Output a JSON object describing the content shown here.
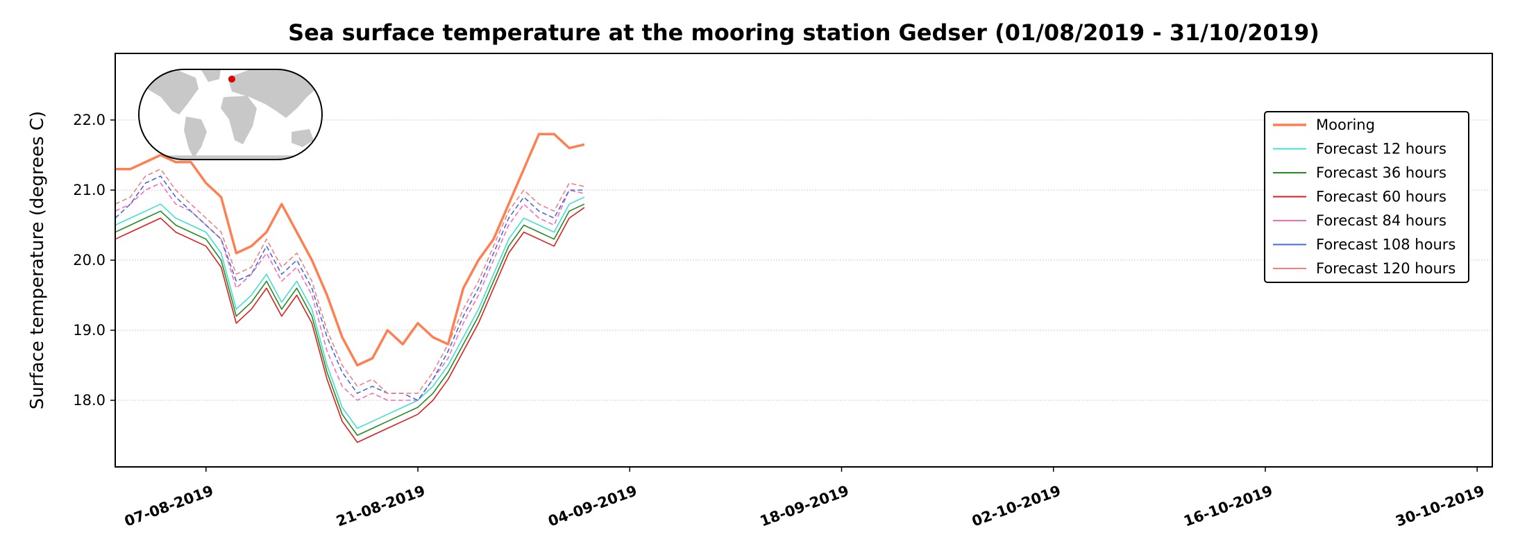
{
  "chart_data": {
    "type": "line",
    "title": "Sea surface temperature at the mooring station Gedser (01/08/2019 - 31/10/2019)",
    "ylabel": "Surface temperature (degrees C)",
    "xlabel": "",
    "x_range": [
      "2019-08-01",
      "2019-10-31"
    ],
    "ylim": [
      17.05,
      22.95
    ],
    "yticks": [
      18.0,
      19.0,
      20.0,
      21.0,
      22.0
    ],
    "ytick_labels": [
      "18.0",
      "19.0",
      "20.0",
      "21.0",
      "22.0"
    ],
    "xticks": [
      "2019-08-07",
      "2019-08-21",
      "2019-09-04",
      "2019-09-18",
      "2019-10-02",
      "2019-10-16",
      "2019-10-30"
    ],
    "xtick_labels": [
      "07-08-2019",
      "21-08-2019",
      "04-09-2019",
      "18-09-2019",
      "02-10-2019",
      "16-10-2019",
      "30-10-2019"
    ],
    "grid": "horizontal dotted",
    "legend_position": "upper right",
    "inset": "world map with station marker",
    "x": [
      "2019-08-01",
      "2019-08-02",
      "2019-08-03",
      "2019-08-04",
      "2019-08-05",
      "2019-08-06",
      "2019-08-07",
      "2019-08-08",
      "2019-08-09",
      "2019-08-10",
      "2019-08-11",
      "2019-08-12",
      "2019-08-13",
      "2019-08-14",
      "2019-08-15",
      "2019-08-16",
      "2019-08-17",
      "2019-08-18",
      "2019-08-19",
      "2019-08-20",
      "2019-08-21",
      "2019-08-22",
      "2019-08-23",
      "2019-08-24",
      "2019-08-25",
      "2019-08-26",
      "2019-08-27",
      "2019-08-28",
      "2019-08-29",
      "2019-08-30",
      "2019-08-31",
      "2019-09-01"
    ],
    "series": [
      {
        "name": "Mooring",
        "color": "#ff7f50",
        "width": 3.5,
        "dash": "",
        "values": [
          21.3,
          21.3,
          21.4,
          21.5,
          21.4,
          21.4,
          21.1,
          20.9,
          20.1,
          20.2,
          20.4,
          20.8,
          20.4,
          20.0,
          19.5,
          18.9,
          18.5,
          18.6,
          19.0,
          18.8,
          19.1,
          18.9,
          18.8,
          19.6,
          20.0,
          20.3,
          20.8,
          21.3,
          21.8,
          21.8,
          21.6,
          21.65
        ]
      },
      {
        "name": "Forecast 12 hours",
        "color": "#40e0d0",
        "width": 1.6,
        "dash": "",
        "values": [
          20.5,
          20.6,
          20.7,
          20.8,
          20.6,
          20.5,
          20.4,
          20.1,
          19.3,
          19.5,
          19.8,
          19.4,
          19.7,
          19.3,
          18.5,
          17.9,
          17.6,
          17.7,
          17.8,
          17.9,
          18.0,
          18.2,
          18.5,
          18.9,
          19.3,
          19.8,
          20.3,
          20.6,
          20.5,
          20.4,
          20.8,
          20.9
        ]
      },
      {
        "name": "Forecast 36 hours",
        "color": "#228b22",
        "width": 1.6,
        "dash": "",
        "values": [
          20.4,
          20.5,
          20.6,
          20.7,
          20.5,
          20.4,
          20.3,
          20.0,
          19.2,
          19.4,
          19.7,
          19.3,
          19.6,
          19.2,
          18.4,
          17.8,
          17.5,
          17.6,
          17.7,
          17.8,
          17.9,
          18.1,
          18.4,
          18.8,
          19.2,
          19.7,
          20.2,
          20.5,
          20.4,
          20.3,
          20.7,
          20.8
        ]
      },
      {
        "name": "Forecast 60 hours",
        "color": "#e31a1c",
        "width": 1.6,
        "dash": "",
        "values": [
          20.3,
          20.4,
          20.5,
          20.6,
          20.4,
          20.3,
          20.2,
          19.9,
          19.1,
          19.3,
          19.6,
          19.2,
          19.5,
          19.1,
          18.3,
          17.7,
          17.4,
          17.5,
          17.6,
          17.7,
          17.8,
          18.0,
          18.3,
          18.7,
          19.1,
          19.6,
          20.1,
          20.4,
          20.3,
          20.2,
          20.6,
          20.75
        ]
      },
      {
        "name": "Forecast 84 hours",
        "color": "#ff69b4",
        "width": 1.6,
        "dash": "7,4",
        "values": [
          20.7,
          20.8,
          21.0,
          21.1,
          20.8,
          20.7,
          20.5,
          20.3,
          19.6,
          19.8,
          20.1,
          19.7,
          19.9,
          19.5,
          18.7,
          18.2,
          18.0,
          18.1,
          18.0,
          18.0,
          18.0,
          18.3,
          18.6,
          19.1,
          19.5,
          20.0,
          20.5,
          20.8,
          20.6,
          20.5,
          21.0,
          20.95
        ]
      },
      {
        "name": "Forecast 108 hours",
        "color": "#4169e1",
        "width": 1.6,
        "dash": "7,4",
        "values": [
          20.6,
          20.8,
          21.1,
          21.2,
          20.9,
          20.7,
          20.5,
          20.3,
          19.7,
          19.8,
          20.2,
          19.8,
          20.0,
          19.6,
          18.9,
          18.4,
          18.1,
          18.2,
          18.1,
          18.1,
          18.0,
          18.3,
          18.7,
          19.2,
          19.6,
          20.1,
          20.6,
          20.9,
          20.7,
          20.6,
          21.0,
          21.0
        ]
      },
      {
        "name": "Forecast 120 hours",
        "color": "#f08080",
        "width": 1.6,
        "dash": "7,4",
        "values": [
          20.8,
          20.9,
          21.2,
          21.3,
          21.0,
          20.8,
          20.6,
          20.4,
          19.8,
          19.9,
          20.3,
          19.9,
          20.1,
          19.7,
          19.0,
          18.5,
          18.2,
          18.3,
          18.1,
          18.1,
          18.1,
          18.4,
          18.8,
          19.3,
          19.7,
          20.2,
          20.7,
          21.0,
          20.8,
          20.7,
          21.1,
          21.05
        ]
      }
    ]
  },
  "colors": {
    "station_marker": "#e00000",
    "land": "#c8c8c8",
    "frame": "#000000",
    "grid": "#cccccc"
  }
}
